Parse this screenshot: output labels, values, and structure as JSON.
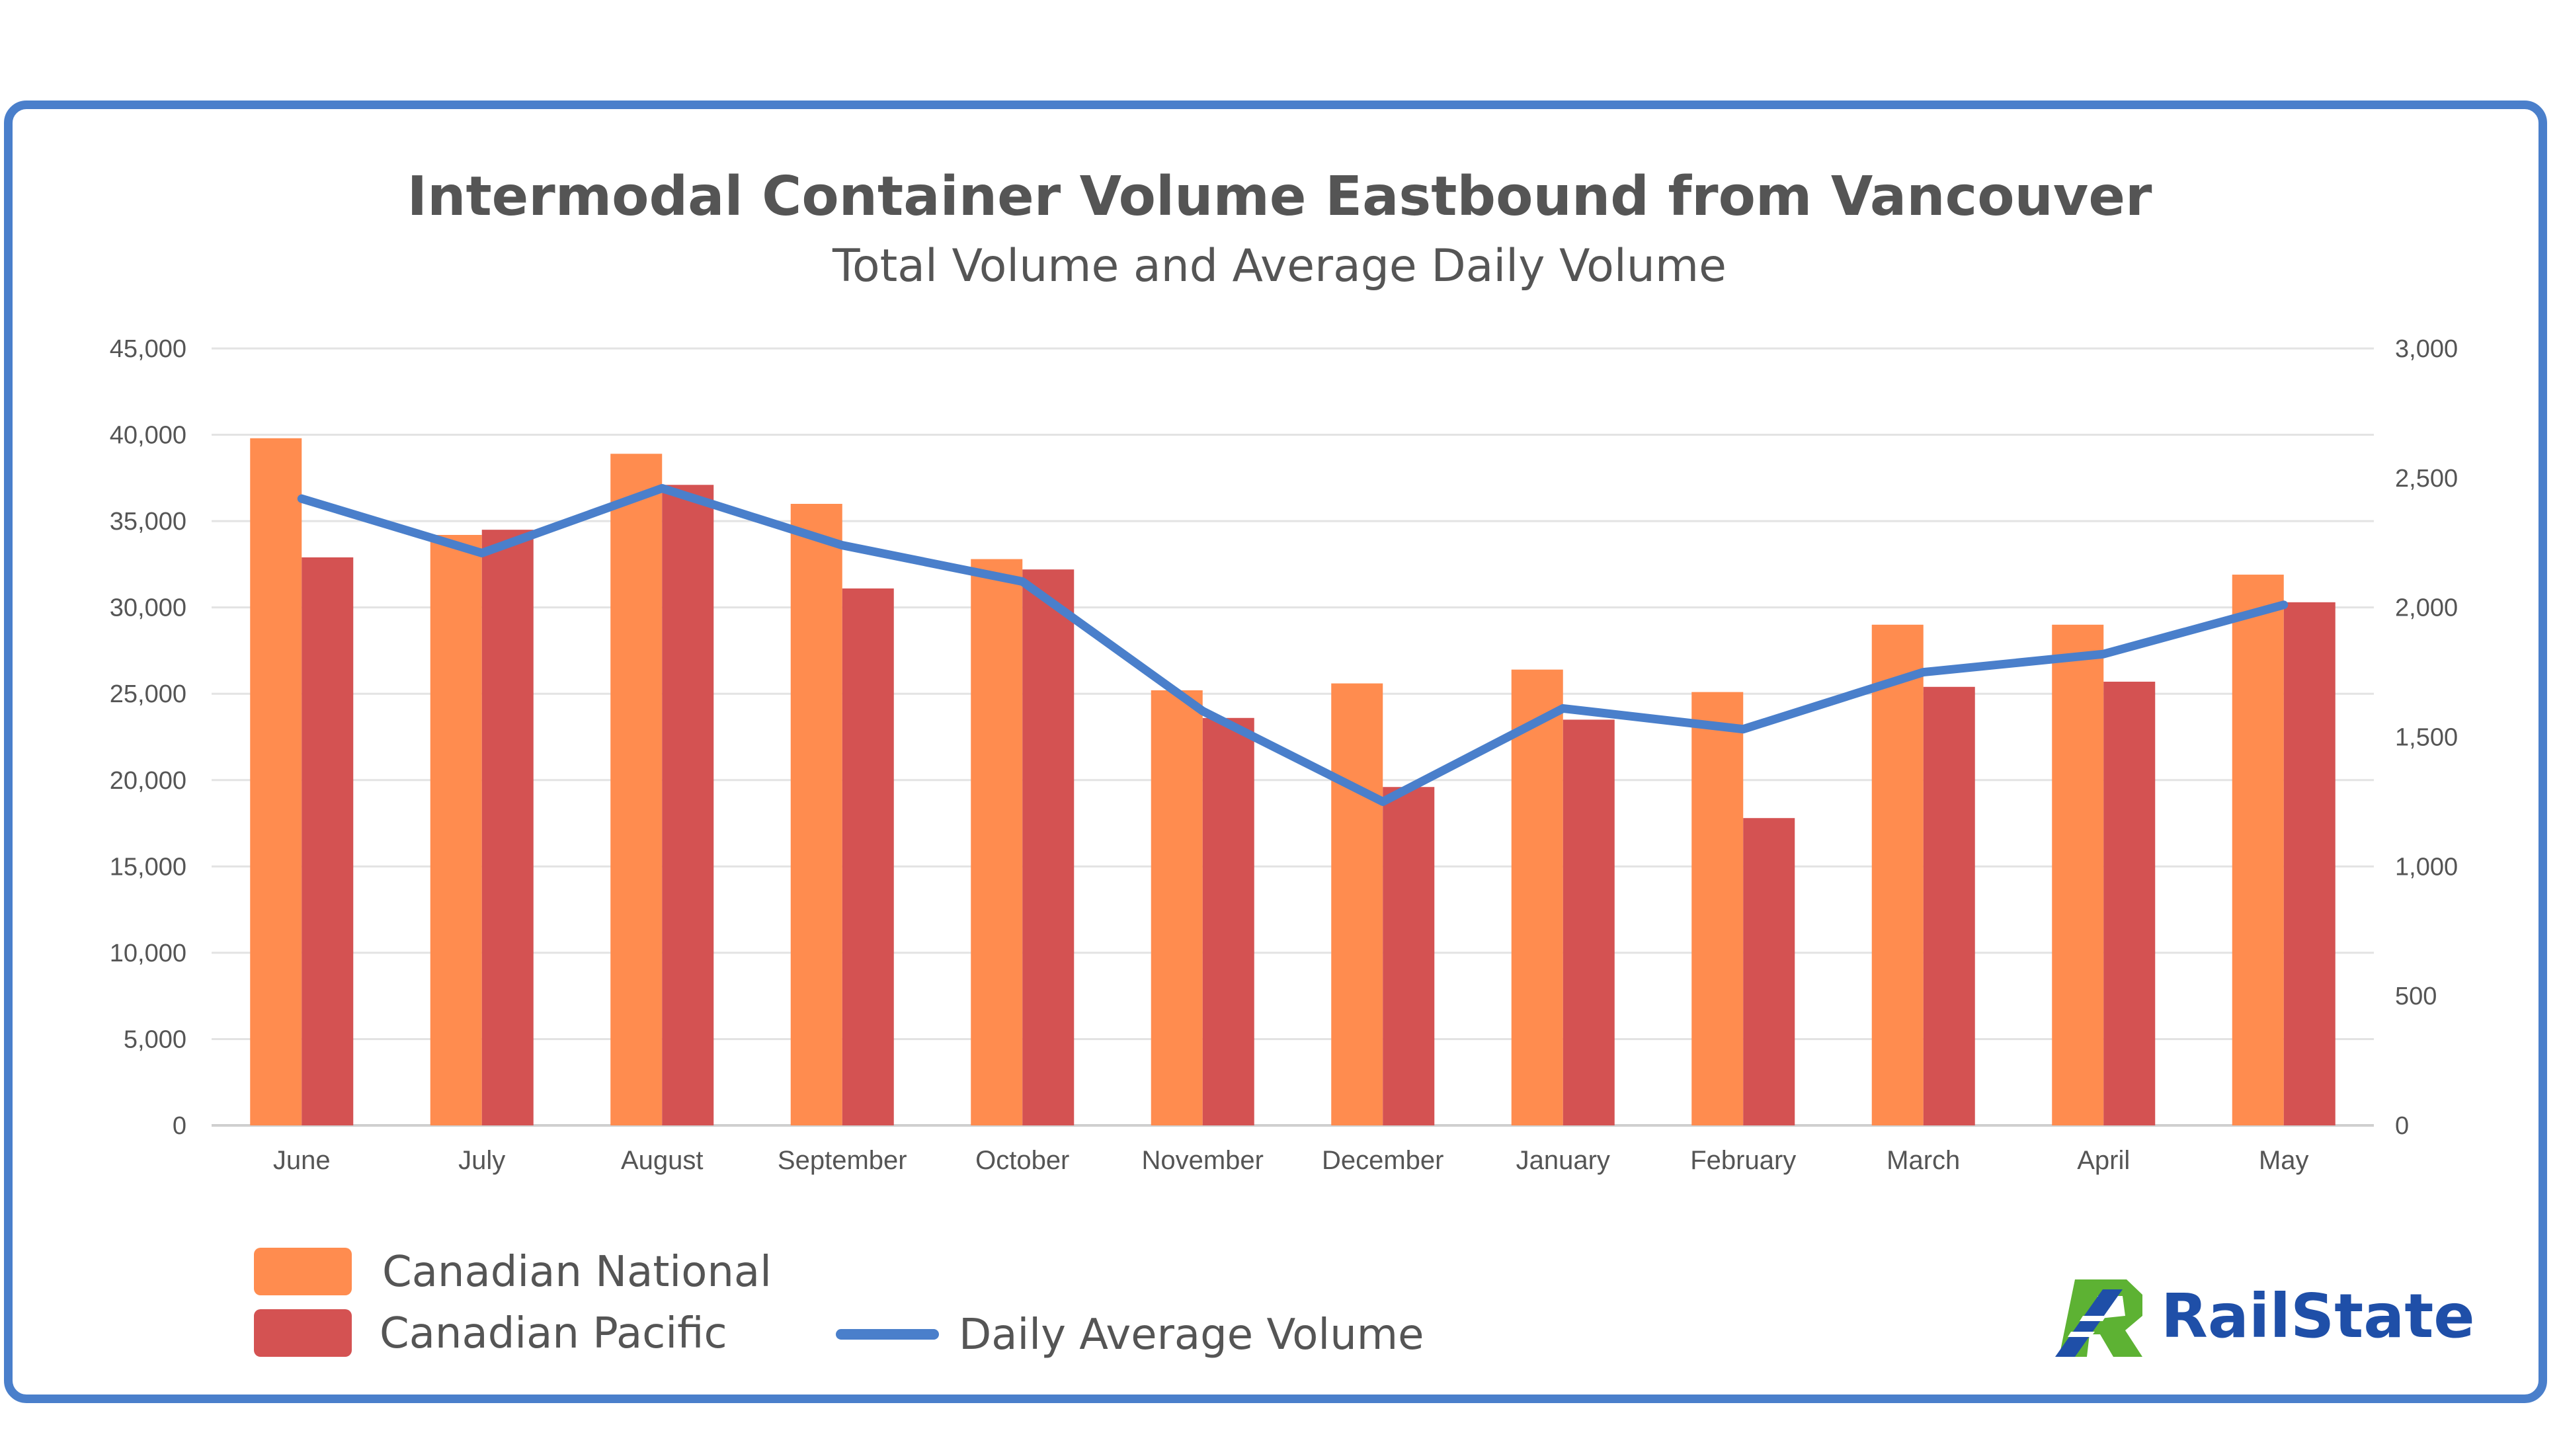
{
  "chart_data": {
    "type": "bar",
    "title": "Intermodal Container Volume Eastbound from Vancouver",
    "subtitle": "Total Volume and Average Daily Volume",
    "categories": [
      "June",
      "July",
      "August",
      "September",
      "October",
      "November",
      "December",
      "January",
      "February",
      "March",
      "April",
      "May"
    ],
    "series": [
      {
        "name": "Canadian National",
        "type": "bar",
        "axis": "left",
        "color": "#FF8C4F",
        "values": [
          39800,
          34200,
          38900,
          36000,
          32800,
          25200,
          25600,
          26400,
          25100,
          29000,
          29000,
          31900
        ]
      },
      {
        "name": "Canadian Pacific",
        "type": "bar",
        "axis": "left",
        "color": "#D45252",
        "values": [
          32900,
          34500,
          37100,
          31100,
          32200,
          23600,
          19600,
          23500,
          17800,
          25400,
          25700,
          30300
        ]
      },
      {
        "name": "Daily Average Volume",
        "type": "line",
        "axis": "right",
        "color": "#4A7FCB",
        "values": [
          2420,
          2210,
          2460,
          2240,
          2100,
          1600,
          1250,
          1610,
          1530,
          1750,
          1820,
          2010
        ]
      }
    ],
    "y_left": {
      "min": 0,
      "max": 45000,
      "ticks": [
        "0",
        "5,000",
        "10,000",
        "15,000",
        "20,000",
        "25,000",
        "30,000",
        "35,000",
        "40,000",
        "45,000"
      ]
    },
    "y_right": {
      "min": 0,
      "max": 3000,
      "ticks": [
        "0",
        "500",
        "1,000",
        "1,500",
        "2,000",
        "2,500",
        "3,000"
      ]
    },
    "grid": true,
    "legend_position": "bottom-left"
  },
  "logo": {
    "text": "RailState"
  }
}
